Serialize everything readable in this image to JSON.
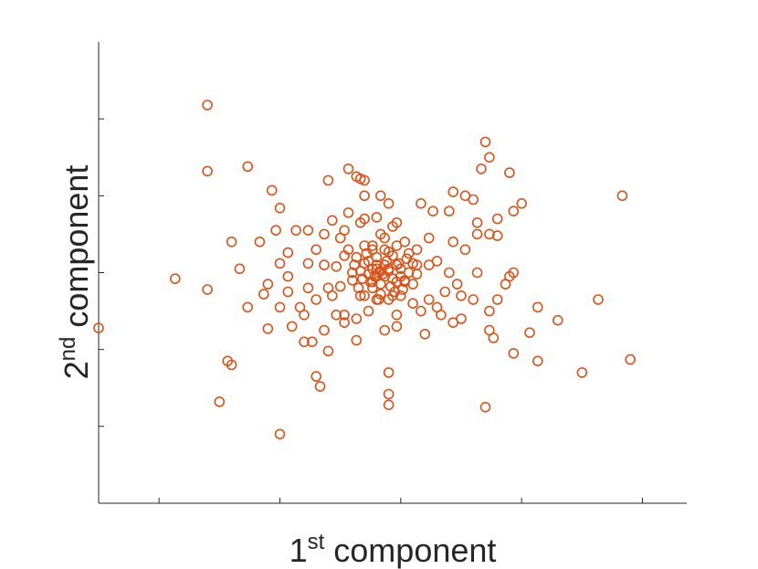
{
  "chart_data": {
    "type": "scatter",
    "xlabel": {
      "main": "1",
      "sup": "st",
      "rest": " component"
    },
    "ylabel": {
      "main": "2",
      "sup": "nd",
      "rest": " component"
    },
    "xlim": [
      -4.9,
      9.7
    ],
    "ylim": [
      -3,
      3
    ],
    "xticks": [
      -3.4,
      -0.4,
      2.6,
      5.6,
      8.6
    ],
    "yticks": [
      -2,
      -1,
      0,
      1,
      2
    ],
    "grid": false,
    "marker_color": "#D95319",
    "points": [
      [
        -2.2,
        2.18
      ],
      [
        -2.2,
        1.32
      ],
      [
        -3.0,
        -0.08
      ],
      [
        -2.2,
        -0.22
      ],
      [
        -4.9,
        -0.72
      ],
      [
        -1.7,
        -1.15
      ],
      [
        -1.6,
        -1.2
      ],
      [
        -1.9,
        -1.68
      ],
      [
        -0.4,
        -2.1
      ],
      [
        -1.2,
        1.38
      ],
      [
        -0.6,
        1.07
      ],
      [
        -0.4,
        0.84
      ],
      [
        -0.9,
        0.4
      ],
      [
        -0.2,
        0.26
      ],
      [
        -1.6,
        0.4
      ],
      [
        -1.4,
        0.05
      ],
      [
        -1.2,
        -0.45
      ],
      [
        -0.8,
        -0.28
      ],
      [
        -0.5,
        0.55
      ],
      [
        -0.4,
        0.12
      ],
      [
        -0.7,
        -0.15
      ],
      [
        -0.4,
        -0.45
      ],
      [
        -0.7,
        -0.73
      ],
      [
        -0.2,
        -0.05
      ],
      [
        0.3,
        0.55
      ],
      [
        0.8,
        1.2
      ],
      [
        1.6,
        1.22
      ],
      [
        1.7,
        1.2
      ],
      [
        1.7,
        1.0
      ],
      [
        1.7,
        0.7
      ],
      [
        4.7,
        1.7
      ],
      [
        4.8,
        1.5
      ],
      [
        5.3,
        1.3
      ],
      [
        8.1,
        1.0
      ],
      [
        5.6,
        0.9
      ],
      [
        5.4,
        0.8
      ],
      [
        5.0,
        0.7
      ],
      [
        4.8,
        0.5
      ],
      [
        3.8,
        0.8
      ],
      [
        3.4,
        0.8
      ],
      [
        3.1,
        0.9
      ],
      [
        5.0,
        0.48
      ],
      [
        4.5,
        0.5
      ],
      [
        4.2,
        0.3
      ],
      [
        4.5,
        0.0
      ],
      [
        5.3,
        -0.05
      ],
      [
        5.4,
        0.0
      ],
      [
        5.2,
        -0.15
      ],
      [
        5.0,
        -0.35
      ],
      [
        4.8,
        -0.5
      ],
      [
        4.4,
        -0.35
      ],
      [
        4.1,
        -0.3
      ],
      [
        3.7,
        -0.25
      ],
      [
        3.3,
        -0.35
      ],
      [
        2.9,
        -0.4
      ],
      [
        2.5,
        -0.7
      ],
      [
        2.2,
        -0.75
      ],
      [
        2.5,
        -0.55
      ],
      [
        6.0,
        -0.45
      ],
      [
        6.5,
        -0.62
      ],
      [
        7.5,
        -0.35
      ],
      [
        5.8,
        -0.78
      ],
      [
        4.8,
        -0.75
      ],
      [
        4.9,
        -0.85
      ],
      [
        5.4,
        -1.05
      ],
      [
        6.0,
        -1.15
      ],
      [
        7.1,
        -1.3
      ],
      [
        8.3,
        -1.13
      ],
      [
        2.3,
        -1.3
      ],
      [
        2.3,
        -1.58
      ],
      [
        2.3,
        -1.72
      ],
      [
        4.7,
        -1.75
      ],
      [
        1.3,
        0.3
      ],
      [
        1.3,
        1.35
      ],
      [
        1.5,
        1.25
      ],
      [
        1.3,
        0.78
      ],
      [
        1.6,
        0.65
      ],
      [
        0.7,
        0.5
      ],
      [
        0.5,
        0.3
      ],
      [
        0.7,
        0.1
      ],
      [
        0.8,
        -0.2
      ],
      [
        1.0,
        -0.55
      ],
      [
        0.7,
        -0.75
      ],
      [
        0.4,
        -0.9
      ],
      [
        0.2,
        -0.9
      ],
      [
        1.5,
        -0.88
      ],
      [
        0.5,
        -1.35
      ],
      [
        0.8,
        -1.02
      ],
      [
        1.2,
        -0.55
      ],
      [
        0.6,
        -1.48
      ],
      [
        -0.1,
        -0.7
      ],
      [
        0.1,
        -0.45
      ],
      [
        0.3,
        -0.2
      ],
      [
        1.4,
        0.0
      ],
      [
        1.6,
        -0.3
      ],
      [
        2.0,
        0.72
      ],
      [
        2.1,
        0.5
      ],
      [
        1.9,
        0.35
      ],
      [
        2.3,
        0.9
      ],
      [
        2.1,
        1.0
      ],
      [
        2.5,
        0.65
      ],
      [
        2.7,
        0.4
      ],
      [
        3.0,
        0.3
      ],
      [
        3.3,
        0.45
      ],
      [
        3.5,
        0.15
      ],
      [
        3.3,
        0.1
      ],
      [
        3.9,
        0.4
      ],
      [
        3.8,
        0.0
      ],
      [
        4.0,
        -0.15
      ],
      [
        4.4,
        0.95
      ],
      [
        4.2,
        1.0
      ],
      [
        3.9,
        1.05
      ],
      [
        4.6,
        1.35
      ],
      [
        4.5,
        0.65
      ],
      [
        2.3,
        0.27
      ],
      [
        2.5,
        0.1
      ],
      [
        2.7,
        -0.1
      ],
      [
        2.9,
        -0.15
      ],
      [
        2.4,
        -0.3
      ],
      [
        1.9,
        -0.2
      ],
      [
        1.8,
        -0.5
      ],
      [
        1.5,
        -0.6
      ],
      [
        1.2,
        -0.65
      ],
      [
        3.6,
        -0.55
      ],
      [
        3.2,
        -0.8
      ],
      [
        4.1,
        -0.6
      ],
      [
        3.9,
        -0.65
      ],
      [
        2.0,
        -0.35
      ],
      [
        2.6,
        -0.3
      ],
      [
        2.0,
        0.1
      ],
      [
        1.8,
        0.15
      ],
      [
        1.2,
        0.22
      ],
      [
        1.0,
        0.08
      ],
      [
        1.1,
        -0.18
      ],
      [
        1.9,
        -0.12
      ],
      [
        1.5,
        0.2
      ],
      [
        1.7,
        0.35
      ],
      [
        2.2,
        0.45
      ],
      [
        2.5,
        0.35
      ],
      [
        3.1,
        -0.5
      ],
      [
        3.5,
        -0.45
      ],
      [
        3.0,
        0.1
      ],
      [
        2.8,
        0.25
      ],
      [
        0.0,
        0.55
      ],
      [
        0.3,
        0.12
      ],
      [
        -0.2,
        -0.25
      ],
      [
        0.2,
        -0.55
      ],
      [
        0.5,
        -0.35
      ],
      [
        0.9,
        -0.3
      ],
      [
        1.1,
        0.45
      ],
      [
        1.2,
        0.55
      ],
      [
        0.9,
        0.68
      ],
      [
        2.4,
        0.6
      ],
      [
        2.0,
        -0.05
      ],
      [
        2.2,
        -0.05
      ],
      [
        2.1,
        -0.15
      ],
      [
        2.3,
        0.02
      ],
      [
        2.6,
        -0.05
      ],
      [
        1.8,
        -0.02
      ],
      [
        2.0,
        0.05
      ],
      [
        2.2,
        0.1
      ],
      [
        2.1,
        0.02
      ],
      [
        2.4,
        -0.08
      ],
      [
        1.9,
        0.05
      ],
      [
        2.05,
        0.0
      ],
      [
        2.15,
        -0.02
      ],
      [
        1.95,
        -0.05
      ],
      [
        2.3,
        0.05
      ],
      [
        2.25,
        0.15
      ],
      [
        1.85,
        -0.12
      ],
      [
        2.5,
        -0.12
      ],
      [
        1.7,
        0.12
      ],
      [
        2.35,
        -0.18
      ],
      [
        2.55,
        0.12
      ],
      [
        1.65,
        -0.08
      ],
      [
        2.0,
        0.2
      ],
      [
        2.1,
        -0.28
      ],
      [
        2.4,
        0.22
      ],
      [
        1.75,
        0.25
      ],
      [
        2.6,
        0.05
      ],
      [
        2.7,
        -0.12
      ],
      [
        1.6,
        0.02
      ],
      [
        2.8,
        0.0
      ],
      [
        1.55,
        -0.2
      ],
      [
        2.45,
        -0.25
      ],
      [
        2.2,
        0.3
      ],
      [
        1.9,
        0.3
      ],
      [
        2.65,
        -0.22
      ],
      [
        1.45,
        0.1
      ],
      [
        2.9,
        0.12
      ],
      [
        2.75,
        0.18
      ],
      [
        1.4,
        -0.1
      ],
      [
        3.0,
        -0.02
      ],
      [
        2.05,
        -0.35
      ],
      [
        2.3,
        -0.35
      ],
      [
        1.7,
        -0.3
      ]
    ]
  }
}
